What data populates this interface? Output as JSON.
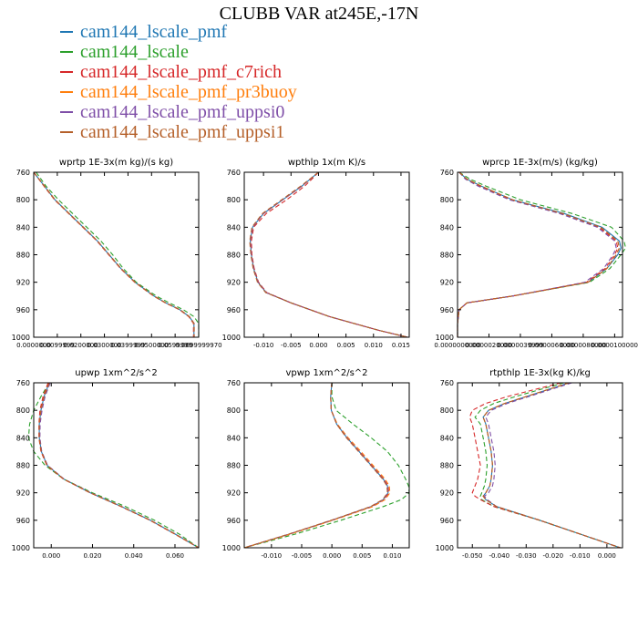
{
  "title": "CLUBB VAR at245E,-17N",
  "legend": [
    {
      "name": "cam144_lscale_pmf",
      "color": "#1f77b4"
    },
    {
      "name": "cam144_lscale",
      "color": "#2ca02c"
    },
    {
      "name": "cam144_lscale_pmf_c7rich",
      "color": "#d62728"
    },
    {
      "name": "cam144_lscale_pmf_pr3buoy",
      "color": "#ff7f0e"
    },
    {
      "name": "cam144_lscale_pmf_uppsi0",
      "color": "#7f4fa8"
    },
    {
      "name": "cam144_lscale_pmf_uppsi1",
      "color": "#b5602a"
    }
  ],
  "chart_data": [
    {
      "type": "line",
      "title": "wprtp  1E-3x(m kg)/(s kg)",
      "xlim": [
        0,
        0.07
      ],
      "ylim": [
        760,
        1000
      ],
      "y_inverted": true,
      "yticks": [
        760,
        800,
        840,
        880,
        920,
        960,
        1000
      ],
      "xticks": [
        0,
        0.01,
        0.02,
        0.03,
        0.04,
        0.05,
        0.06,
        0.07
      ],
      "xtick_labels": [
        "0.0000000",
        "0.0099999",
        "0.0200000",
        "0.0300000",
        "0.0399999",
        "0.0500000",
        "0.0599999",
        "0.0699999970"
      ],
      "y": [
        760,
        780,
        800,
        820,
        840,
        860,
        880,
        900,
        920,
        940,
        950,
        960,
        970,
        980,
        1000
      ],
      "series": [
        {
          "values": [
            0.0,
            0.0045,
            0.009,
            0.015,
            0.021,
            0.027,
            0.032,
            0.037,
            0.043,
            0.051,
            0.056,
            0.062,
            0.066,
            0.068,
            0.068
          ]
        },
        {
          "values": [
            0.001,
            0.0052,
            0.0105,
            0.0165,
            0.0225,
            0.0285,
            0.0335,
            0.038,
            0.0435,
            0.052,
            0.0575,
            0.0635,
            0.068,
            0.07,
            0.07
          ]
        },
        {
          "values": [
            0.0,
            0.0043,
            0.0088,
            0.0148,
            0.0208,
            0.0268,
            0.0318,
            0.0368,
            0.0428,
            0.0508,
            0.0558,
            0.0618,
            0.0658,
            0.0678,
            0.0678
          ]
        },
        {
          "values": [
            0.0,
            0.0044,
            0.0089,
            0.0149,
            0.0209,
            0.0269,
            0.0319,
            0.0369,
            0.0429,
            0.0509,
            0.0559,
            0.0619,
            0.0659,
            0.0679,
            0.0679
          ]
        },
        {
          "values": [
            0.0,
            0.0045,
            0.009,
            0.015,
            0.021,
            0.027,
            0.032,
            0.037,
            0.043,
            0.051,
            0.056,
            0.062,
            0.066,
            0.068,
            0.068
          ]
        },
        {
          "values": [
            0.0,
            0.0046,
            0.0091,
            0.0151,
            0.0211,
            0.0271,
            0.0321,
            0.0371,
            0.0431,
            0.0511,
            0.0561,
            0.0621,
            0.0661,
            0.0681,
            0.0681
          ]
        }
      ]
    },
    {
      "type": "line",
      "title": "wpthlp  1x(m K)/s",
      "xlim": [
        -0.0135,
        0.0165
      ],
      "ylim": [
        760,
        1000
      ],
      "y_inverted": true,
      "yticks": [
        760,
        800,
        840,
        880,
        920,
        960,
        1000
      ],
      "xticks": [
        -0.01,
        -0.005,
        0,
        0.005,
        0.01,
        0.015
      ],
      "xtick_labels": [
        "-0.010",
        "-0.005",
        "0.000",
        "0.005",
        "0.010",
        "0.015"
      ],
      "y": [
        760,
        770,
        780,
        800,
        820,
        840,
        860,
        880,
        900,
        920,
        935,
        950,
        970,
        990,
        1000
      ],
      "series": [
        {
          "values": [
            0.0,
            -0.0015,
            -0.003,
            -0.0065,
            -0.01,
            -0.012,
            -0.0124,
            -0.0122,
            -0.0118,
            -0.011,
            -0.0095,
            -0.005,
            0.002,
            0.011,
            0.0162
          ]
        },
        {
          "values": [
            0.0,
            -0.0015,
            -0.003,
            -0.0065,
            -0.01,
            -0.012,
            -0.0124,
            -0.0122,
            -0.0118,
            -0.011,
            -0.0095,
            -0.005,
            0.002,
            0.011,
            0.0162
          ]
        },
        {
          "values": [
            0.0,
            -0.0012,
            -0.0025,
            -0.0058,
            -0.0095,
            -0.0118,
            -0.0122,
            -0.0121,
            -0.0117,
            -0.0109,
            -0.0094,
            -0.005,
            0.002,
            0.011,
            0.0162
          ]
        },
        {
          "values": [
            0.0,
            -0.0015,
            -0.003,
            -0.0065,
            -0.01,
            -0.012,
            -0.0124,
            -0.0122,
            -0.0118,
            -0.011,
            -0.0095,
            -0.005,
            0.002,
            0.011,
            0.0162
          ]
        },
        {
          "values": [
            0.0,
            -0.0015,
            -0.003,
            -0.0065,
            -0.01,
            -0.012,
            -0.0124,
            -0.0122,
            -0.0118,
            -0.011,
            -0.0095,
            -0.005,
            0.002,
            0.011,
            0.0162
          ]
        },
        {
          "values": [
            0.0,
            -0.0016,
            -0.0032,
            -0.0067,
            -0.0102,
            -0.0121,
            -0.0125,
            -0.0123,
            -0.0119,
            -0.0111,
            -0.0096,
            -0.005,
            0.002,
            0.011,
            0.0162
          ]
        }
      ]
    },
    {
      "type": "line",
      "title": "wprcp  1E-3x(m/s) (kg/kg)",
      "xlim": [
        0,
        1.05e-05
      ],
      "ylim": [
        760,
        1000
      ],
      "y_inverted": true,
      "yticks": [
        760,
        800,
        840,
        880,
        920,
        960,
        1000
      ],
      "xticks": [
        0,
        2e-06,
        4e-06,
        6e-06,
        8e-06,
        1e-05
      ],
      "xtick_labels": [
        "0.0000000000",
        "0.0000020000",
        "0.0000039999",
        "0.0000060000",
        "0.0000080000",
        "0.0000100000"
      ],
      "y": [
        760,
        770,
        780,
        800,
        820,
        840,
        860,
        870,
        880,
        900,
        920,
        940,
        950,
        960,
        980,
        1000
      ],
      "series": [
        {
          "values": [
            1e-07,
            6e-07,
            1.5e-06,
            3.5e-06,
            6.8e-06,
            9.2e-06,
            1.03e-05,
            1.04e-05,
            1.02e-05,
            9.5e-06,
            8.3e-06,
            3.5e-06,
            6e-07,
            1e-07,
            0,
            0
          ]
        },
        {
          "values": [
            1e-07,
            8e-07,
            1.8e-06,
            4e-06,
            7.3e-06,
            9.8e-06,
            1.06e-05,
            1.07e-05,
            1.04e-05,
            9.7e-06,
            8.4e-06,
            3.5e-06,
            6e-07,
            1e-07,
            0,
            0
          ]
        },
        {
          "values": [
            1e-07,
            6e-07,
            1.4e-06,
            3.4e-06,
            6.6e-06,
            9e-06,
            1.01e-05,
            1.02e-05,
            1e-05,
            9.4e-06,
            8.2e-06,
            3.5e-06,
            6e-07,
            1e-07,
            0,
            0
          ]
        },
        {
          "values": [
            1e-07,
            6e-07,
            1.5e-06,
            3.5e-06,
            6.7e-06,
            9.1e-06,
            1.02e-05,
            1.03e-05,
            1.01e-05,
            9.5e-06,
            8.3e-06,
            3.5e-06,
            6e-07,
            1e-07,
            0,
            0
          ]
        },
        {
          "values": [
            1e-07,
            5e-07,
            1.3e-06,
            3.3e-06,
            6.5e-06,
            8.9e-06,
            1e-05,
            1.01e-05,
            9.9e-06,
            9.3e-06,
            8.1e-06,
            3.5e-06,
            6e-07,
            1e-07,
            0,
            0
          ]
        },
        {
          "values": [
            1e-07,
            6e-07,
            1.5e-06,
            3.5e-06,
            6.7e-06,
            9.1e-06,
            1.02e-05,
            1.03e-05,
            1.01e-05,
            9.5e-06,
            8.3e-06,
            3.5e-06,
            6e-07,
            1e-07,
            0,
            0
          ]
        }
      ]
    },
    {
      "type": "line",
      "title": "upwp  1xm^2/s^2",
      "xlim": [
        -0.0085,
        0.0715
      ],
      "ylim": [
        760,
        1000
      ],
      "y_inverted": true,
      "yticks": [
        760,
        800,
        840,
        880,
        920,
        960,
        1000
      ],
      "xticks": [
        0,
        0.02,
        0.04,
        0.06
      ],
      "xtick_labels": [
        "0.000",
        "0.020",
        "0.040",
        "0.060"
      ],
      "y": [
        760,
        780,
        800,
        820,
        840,
        860,
        880,
        900,
        920,
        940,
        960,
        980,
        1000
      ],
      "series": [
        {
          "values": [
            -0.001,
            -0.0035,
            -0.005,
            -0.0058,
            -0.0058,
            -0.0048,
            -0.002,
            0.006,
            0.019,
            0.034,
            0.048,
            0.06,
            0.0715
          ]
        },
        {
          "values": [
            -0.001,
            -0.005,
            -0.0085,
            -0.0105,
            -0.011,
            -0.0085,
            -0.003,
            0.006,
            0.02,
            0.036,
            0.05,
            0.062,
            0.0715
          ]
        },
        {
          "values": [
            -0.0015,
            -0.004,
            -0.0055,
            -0.006,
            -0.006,
            -0.005,
            -0.0022,
            0.0058,
            0.0188,
            0.0338,
            0.0478,
            0.0598,
            0.0715
          ]
        },
        {
          "values": [
            -0.001,
            -0.0035,
            -0.005,
            -0.0058,
            -0.0058,
            -0.0048,
            -0.002,
            0.006,
            0.019,
            0.034,
            0.048,
            0.06,
            0.0715
          ]
        },
        {
          "values": [
            -0.0005,
            -0.003,
            -0.0045,
            -0.0054,
            -0.0055,
            -0.0046,
            -0.0018,
            0.0062,
            0.0192,
            0.0342,
            0.0482,
            0.0602,
            0.0715
          ]
        },
        {
          "values": [
            -0.001,
            -0.0035,
            -0.005,
            -0.0058,
            -0.0058,
            -0.0048,
            -0.002,
            0.006,
            0.019,
            0.034,
            0.048,
            0.06,
            0.0715
          ]
        }
      ]
    },
    {
      "type": "line",
      "title": "vpwp  1xm^2/s^2",
      "xlim": [
        -0.0145,
        0.0128
      ],
      "ylim": [
        760,
        1000
      ],
      "y_inverted": true,
      "yticks": [
        760,
        800,
        840,
        880,
        920,
        960,
        1000
      ],
      "xticks": [
        -0.01,
        -0.005,
        0,
        0.005,
        0.01
      ],
      "xtick_labels": [
        "-0.010",
        "-0.005",
        "0.000",
        "0.005",
        "0.010"
      ],
      "y": [
        760,
        780,
        800,
        820,
        840,
        860,
        880,
        900,
        910,
        920,
        930,
        940,
        960,
        980,
        1000
      ],
      "series": [
        {
          "values": [
            0.0,
            -0.0002,
            -0.0001,
            0.0008,
            0.0025,
            0.0045,
            0.0065,
            0.0085,
            0.0092,
            0.0093,
            0.0085,
            0.0065,
            0.0,
            -0.007,
            -0.0145
          ]
        },
        {
          "values": [
            0.0,
            0.0,
            0.0007,
            0.0035,
            0.0065,
            0.0092,
            0.011,
            0.0122,
            0.0127,
            0.0128,
            0.0115,
            0.0085,
            0.0015,
            -0.006,
            -0.0145
          ]
        },
        {
          "values": [
            0.0,
            -0.0002,
            -0.0001,
            0.0008,
            0.0025,
            0.0046,
            0.0066,
            0.0086,
            0.0093,
            0.0094,
            0.0086,
            0.0066,
            0.0,
            -0.007,
            -0.0145
          ]
        },
        {
          "values": [
            0.0,
            -0.0002,
            -0.0001,
            0.0009,
            0.0027,
            0.0048,
            0.0068,
            0.0088,
            0.0095,
            0.0096,
            0.0088,
            0.0068,
            0.0002,
            -0.0068,
            -0.0145
          ]
        },
        {
          "values": [
            0.0,
            -0.0002,
            -0.0001,
            0.0008,
            0.0025,
            0.0045,
            0.0065,
            0.0085,
            0.0092,
            0.0093,
            0.0085,
            0.0065,
            0.0,
            -0.007,
            -0.0145
          ]
        },
        {
          "values": [
            0.0,
            -0.0002,
            -0.0001,
            0.0008,
            0.0024,
            0.0044,
            0.0064,
            0.0084,
            0.0091,
            0.0092,
            0.0084,
            0.0064,
            -0.0001,
            -0.0071,
            -0.0145
          ]
        }
      ]
    },
    {
      "type": "line",
      "title": "rtpthlp  1E-3x(kg K)/kg",
      "xlim": [
        -0.0555,
        0.0058
      ],
      "ylim": [
        760,
        1000
      ],
      "y_inverted": true,
      "yticks": [
        760,
        800,
        840,
        880,
        920,
        960,
        1000
      ],
      "xticks": [
        -0.05,
        -0.04,
        -0.03,
        -0.02,
        -0.01,
        0
      ],
      "xtick_labels": [
        "-0.050",
        "-0.040",
        "-0.030",
        "-0.020",
        "-0.010",
        "0.000"
      ],
      "y": [
        760,
        770,
        780,
        790,
        800,
        810,
        820,
        840,
        860,
        880,
        900,
        910,
        920,
        925,
        930,
        940,
        960,
        980,
        1000
      ],
      "series": [
        {
          "values": [
            -0.014,
            -0.022,
            -0.03,
            -0.038,
            -0.044,
            -0.046,
            -0.045,
            -0.044,
            -0.043,
            -0.0425,
            -0.043,
            -0.0435,
            -0.045,
            -0.046,
            -0.045,
            -0.041,
            -0.025,
            -0.01,
            0.005
          ]
        },
        {
          "values": [
            -0.016,
            -0.025,
            -0.034,
            -0.042,
            -0.047,
            -0.049,
            -0.047,
            -0.046,
            -0.045,
            -0.0445,
            -0.045,
            -0.0455,
            -0.0465,
            -0.047,
            -0.0465,
            -0.042,
            -0.025,
            -0.01,
            0.005
          ]
        },
        {
          "values": [
            -0.017,
            -0.027,
            -0.037,
            -0.045,
            -0.05,
            -0.051,
            -0.05,
            -0.049,
            -0.048,
            -0.047,
            -0.048,
            -0.049,
            -0.05,
            -0.049,
            -0.047,
            -0.042,
            -0.025,
            -0.01,
            0.005
          ]
        },
        {
          "values": [
            -0.014,
            -0.022,
            -0.03,
            -0.038,
            -0.044,
            -0.046,
            -0.045,
            -0.044,
            -0.043,
            -0.0425,
            -0.043,
            -0.0435,
            -0.045,
            -0.046,
            -0.045,
            -0.041,
            -0.025,
            -0.01,
            0.005
          ]
        },
        {
          "values": [
            -0.013,
            -0.021,
            -0.029,
            -0.037,
            -0.043,
            -0.045,
            -0.044,
            -0.043,
            -0.042,
            -0.0415,
            -0.042,
            -0.0425,
            -0.044,
            -0.0455,
            -0.0445,
            -0.041,
            -0.025,
            -0.01,
            0.005
          ]
        },
        {
          "values": [
            -0.014,
            -0.022,
            -0.03,
            -0.038,
            -0.044,
            -0.046,
            -0.045,
            -0.044,
            -0.043,
            -0.0425,
            -0.043,
            -0.0435,
            -0.045,
            -0.046,
            -0.045,
            -0.041,
            -0.025,
            -0.01,
            0.005
          ]
        }
      ]
    }
  ]
}
